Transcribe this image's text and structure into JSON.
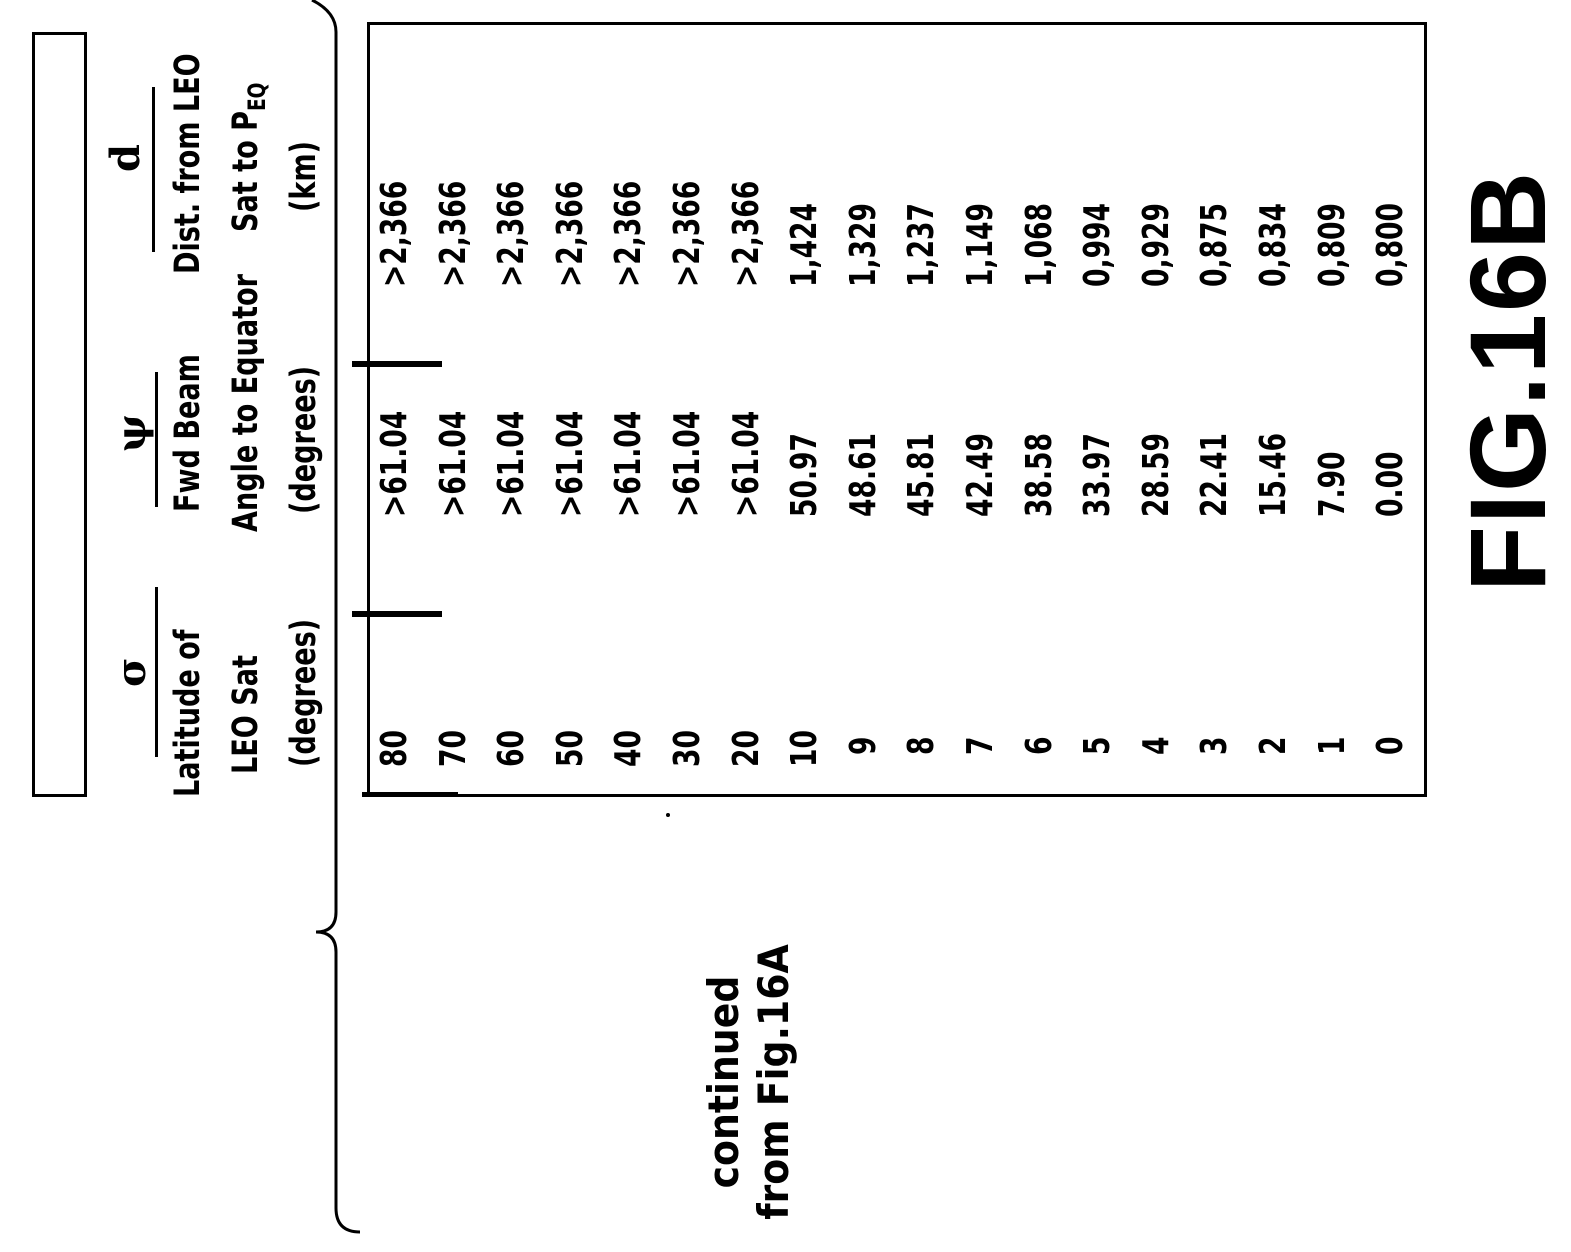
{
  "columns": [
    {
      "symbol": "σ",
      "header": [
        "Latitude of",
        "LEO Sat",
        "(degrees)"
      ]
    },
    {
      "symbol": "ψ",
      "header": [
        "Fwd Beam",
        "Angle to Equator",
        "(degrees)"
      ]
    },
    {
      "symbol": "d",
      "header": [
        "Dist. from LEO",
        "Sat to P",
        "(km)"
      ],
      "header_subscript": "EQ"
    }
  ],
  "rows": [
    [
      "80",
      ">61.04",
      ">2,366"
    ],
    [
      "70",
      ">61.04",
      ">2,366"
    ],
    [
      "60",
      ">61.04",
      ">2,366"
    ],
    [
      "50",
      ">61.04",
      ">2,366"
    ],
    [
      "40",
      ">61.04",
      ">2,366"
    ],
    [
      "30",
      ">61.04",
      ">2,366"
    ],
    [
      "20",
      ">61.04",
      ">2,366"
    ],
    [
      "10",
      "50.97",
      "1,424"
    ],
    [
      "9",
      "48.61",
      "1,329"
    ],
    [
      "8",
      "45.81",
      "1,237"
    ],
    [
      "7",
      "42.49",
      "1,149"
    ],
    [
      "6",
      "38.58",
      "1,068"
    ],
    [
      "5",
      "33.97",
      "0,994"
    ],
    [
      "4",
      "28.59",
      "0,929"
    ],
    [
      "3",
      "22.41",
      "0,875"
    ],
    [
      "2",
      "15.46",
      "0,834"
    ],
    [
      "1",
      "7.90",
      "0,809"
    ],
    [
      "0",
      "0.00",
      "0,800"
    ]
  ],
  "continued_note": [
    "continued",
    "from Fig.16A"
  ],
  "figure_label": "FIG.16B"
}
